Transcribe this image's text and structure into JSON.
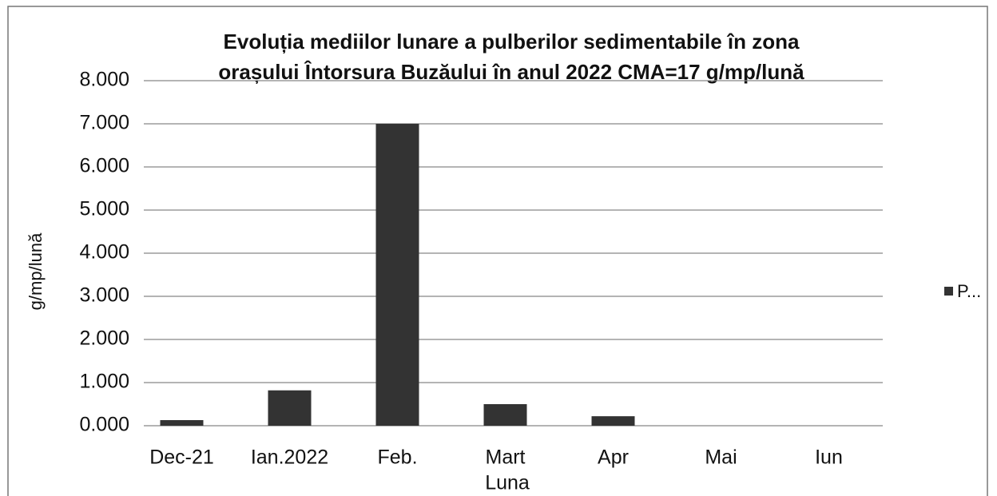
{
  "chart_data": {
    "type": "bar",
    "title": [
      "Evoluția mediilor lunare a pulberilor  sedimentabile în zona",
      "orașului  Întorsura Buzăului în anul 2022  CMA=17 g/mp/lună"
    ],
    "x_label": "Luna",
    "y_label": "g/mp/lună",
    "categories": [
      "Dec-21",
      "Ian.2022",
      "Feb.",
      "Mart",
      "Apr",
      "Mai",
      "Iun"
    ],
    "series": [
      {
        "name": "P...",
        "color": "#333333",
        "values": [
          0.13,
          0.82,
          7.0,
          0.5,
          0.22,
          null,
          null
        ]
      }
    ],
    "ylim": [
      0,
      8
    ],
    "yticks": [
      {
        "value": 0,
        "label": "0.000"
      },
      {
        "value": 1,
        "label": "1.000"
      },
      {
        "value": 2,
        "label": "2.000"
      },
      {
        "value": 3,
        "label": "3.000"
      },
      {
        "value": 4,
        "label": "4.000"
      },
      {
        "value": 5,
        "label": "5.000"
      },
      {
        "value": 6,
        "label": "6.000"
      },
      {
        "value": 7,
        "label": "7.000"
      },
      {
        "value": 8,
        "label": "8.000"
      }
    ],
    "grid": true,
    "legend": "right"
  }
}
